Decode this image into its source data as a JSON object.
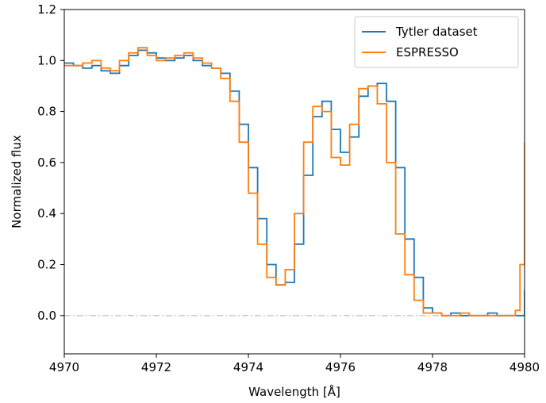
{
  "chart_data": {
    "type": "line",
    "title": "",
    "xlabel": "Wavelength [Å]",
    "ylabel": "Normalized flux",
    "xlim": [
      4970,
      4980
    ],
    "ylim": [
      -0.15,
      1.2
    ],
    "xticks": [
      "4970",
      "4972",
      "4974",
      "4976",
      "4978",
      "4980"
    ],
    "yticks": [
      "0.0",
      "0.2",
      "0.4",
      "0.6",
      "0.8",
      "1.0",
      "1.2"
    ],
    "xtick_values": [
      4970,
      4972,
      4974,
      4976,
      4978,
      4980
    ],
    "ytick_values": [
      0.0,
      0.2,
      0.4,
      0.6,
      0.8,
      1.0,
      1.2
    ],
    "grid": false,
    "legend_position": "top-right",
    "reference_line": {
      "y": 0.0,
      "style": "dash-dot",
      "color": "#cccccc"
    },
    "series": [
      {
        "name": "Tytler dataset",
        "color": "#1f77b4",
        "x": [
          4970.0,
          4970.2,
          4970.4,
          4970.6,
          4970.8,
          4971.0,
          4971.2,
          4971.4,
          4971.6,
          4971.8,
          4972.0,
          4972.2,
          4972.4,
          4972.6,
          4972.8,
          4973.0,
          4973.2,
          4973.4,
          4973.6,
          4973.8,
          4974.0,
          4974.2,
          4974.4,
          4974.6,
          4974.8,
          4975.0,
          4975.2,
          4975.4,
          4975.6,
          4975.8,
          4976.0,
          4976.2,
          4976.4,
          4976.6,
          4976.8,
          4977.0,
          4977.2,
          4977.4,
          4977.6,
          4977.8,
          4978.0,
          4978.2,
          4978.4,
          4978.6,
          4978.8,
          4979.0,
          4979.2,
          4979.4,
          4979.6,
          4979.8,
          4980.0
        ],
        "y": [
          0.99,
          0.98,
          0.97,
          0.98,
          0.96,
          0.95,
          0.98,
          1.02,
          1.04,
          1.03,
          1.01,
          1.0,
          1.01,
          1.02,
          1.0,
          0.98,
          0.97,
          0.95,
          0.88,
          0.75,
          0.58,
          0.38,
          0.2,
          0.12,
          0.13,
          0.28,
          0.55,
          0.78,
          0.84,
          0.73,
          0.64,
          0.7,
          0.86,
          0.9,
          0.91,
          0.84,
          0.58,
          0.3,
          0.15,
          0.03,
          0.01,
          0.0,
          0.01,
          0.0,
          0.0,
          0.0,
          0.01,
          0.0,
          0.0,
          0.0,
          0.1
        ]
      },
      {
        "name": "ESPRESSO",
        "color": "#ff7f0e",
        "x": [
          4970.0,
          4970.2,
          4970.4,
          4970.6,
          4970.8,
          4971.0,
          4971.2,
          4971.4,
          4971.6,
          4971.8,
          4972.0,
          4972.2,
          4972.4,
          4972.6,
          4972.8,
          4973.0,
          4973.2,
          4973.4,
          4973.6,
          4973.8,
          4974.0,
          4974.2,
          4974.4,
          4974.6,
          4974.8,
          4975.0,
          4975.2,
          4975.4,
          4975.6,
          4975.8,
          4976.0,
          4976.2,
          4976.4,
          4976.6,
          4976.8,
          4977.0,
          4977.2,
          4977.4,
          4977.6,
          4977.8,
          4978.0,
          4978.2,
          4978.4,
          4978.6,
          4978.8,
          4979.0,
          4979.2,
          4979.4,
          4979.6,
          4979.8,
          4979.9,
          4980.0
        ],
        "y": [
          0.98,
          0.98,
          0.99,
          1.0,
          0.97,
          0.96,
          1.0,
          1.03,
          1.05,
          1.02,
          1.0,
          1.01,
          1.02,
          1.03,
          1.01,
          0.99,
          0.97,
          0.93,
          0.84,
          0.68,
          0.48,
          0.28,
          0.15,
          0.12,
          0.18,
          0.4,
          0.68,
          0.82,
          0.8,
          0.62,
          0.59,
          0.75,
          0.89,
          0.9,
          0.83,
          0.6,
          0.32,
          0.16,
          0.06,
          0.01,
          0.01,
          0.0,
          0.0,
          0.01,
          0.0,
          0.0,
          0.0,
          0.0,
          0.0,
          0.02,
          0.2,
          0.68
        ]
      }
    ]
  }
}
